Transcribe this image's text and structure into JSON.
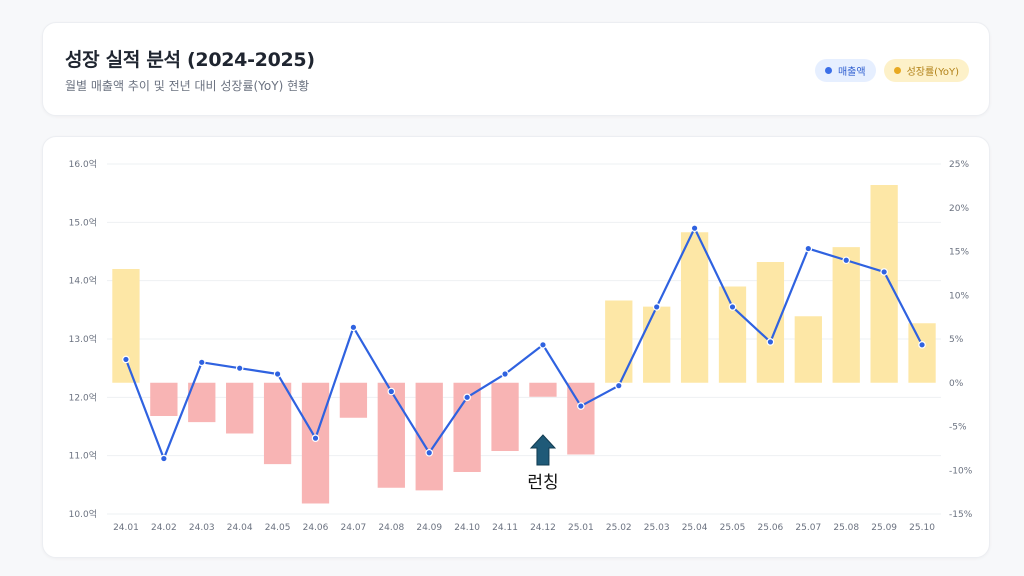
{
  "header": {
    "title": "성장 실적 분석 (2024-2025)",
    "subtitle": "월별 매출액 추이 및 전년 대비 성장률(YoY) 현황"
  },
  "legend": {
    "revenue_label": "매출액",
    "yoy_label": "성장률(YoY)"
  },
  "annotation": {
    "label": "런칭",
    "category": "24.12",
    "icon": "arrow-up-icon"
  },
  "colors": {
    "revenue_line": "#2f62e0",
    "yoy_positive": "#fde7a6",
    "yoy_negative": "#f8b4b4",
    "annotation_arrow": "#1f5a78"
  },
  "chart_data": {
    "type": "bar+line",
    "categories": [
      "24.01",
      "24.02",
      "24.03",
      "24.04",
      "24.05",
      "24.06",
      "24.07",
      "24.08",
      "24.09",
      "24.10",
      "24.11",
      "24.12",
      "25.01",
      "25.02",
      "25.03",
      "25.04",
      "25.05",
      "25.06",
      "25.07",
      "25.08",
      "25.09",
      "25.10"
    ],
    "series": [
      {
        "name": "매출액",
        "type": "line",
        "axis": "left",
        "values": [
          12.65,
          10.95,
          12.6,
          12.5,
          12.4,
          11.3,
          13.2,
          12.1,
          11.05,
          12.0,
          12.4,
          12.9,
          11.85,
          12.2,
          13.55,
          14.9,
          13.55,
          12.95,
          14.55,
          14.35,
          14.15,
          12.9
        ]
      },
      {
        "name": "성장률(YoY)",
        "type": "bar",
        "axis": "right",
        "values": [
          13,
          -3.8,
          -4.5,
          -5.8,
          -9.3,
          -13.8,
          -4,
          -12,
          -12.3,
          -10.2,
          -7.8,
          -1.6,
          -8.2,
          9.4,
          8.7,
          17.2,
          11,
          13.8,
          7.6,
          15.5,
          22.6,
          6.8
        ]
      }
    ],
    "y_left": {
      "min": 10,
      "max": 16,
      "ticks": [
        "10.0억",
        "11.0억",
        "12.0억",
        "13.0억",
        "14.0억",
        "15.0억",
        "16.0억"
      ]
    },
    "y_right": {
      "min": -15,
      "max": 25,
      "ticks": [
        "-15%",
        "-10%",
        "-5%",
        "0%",
        "5%",
        "10%",
        "15%",
        "20%",
        "25%"
      ]
    },
    "grid": true
  }
}
